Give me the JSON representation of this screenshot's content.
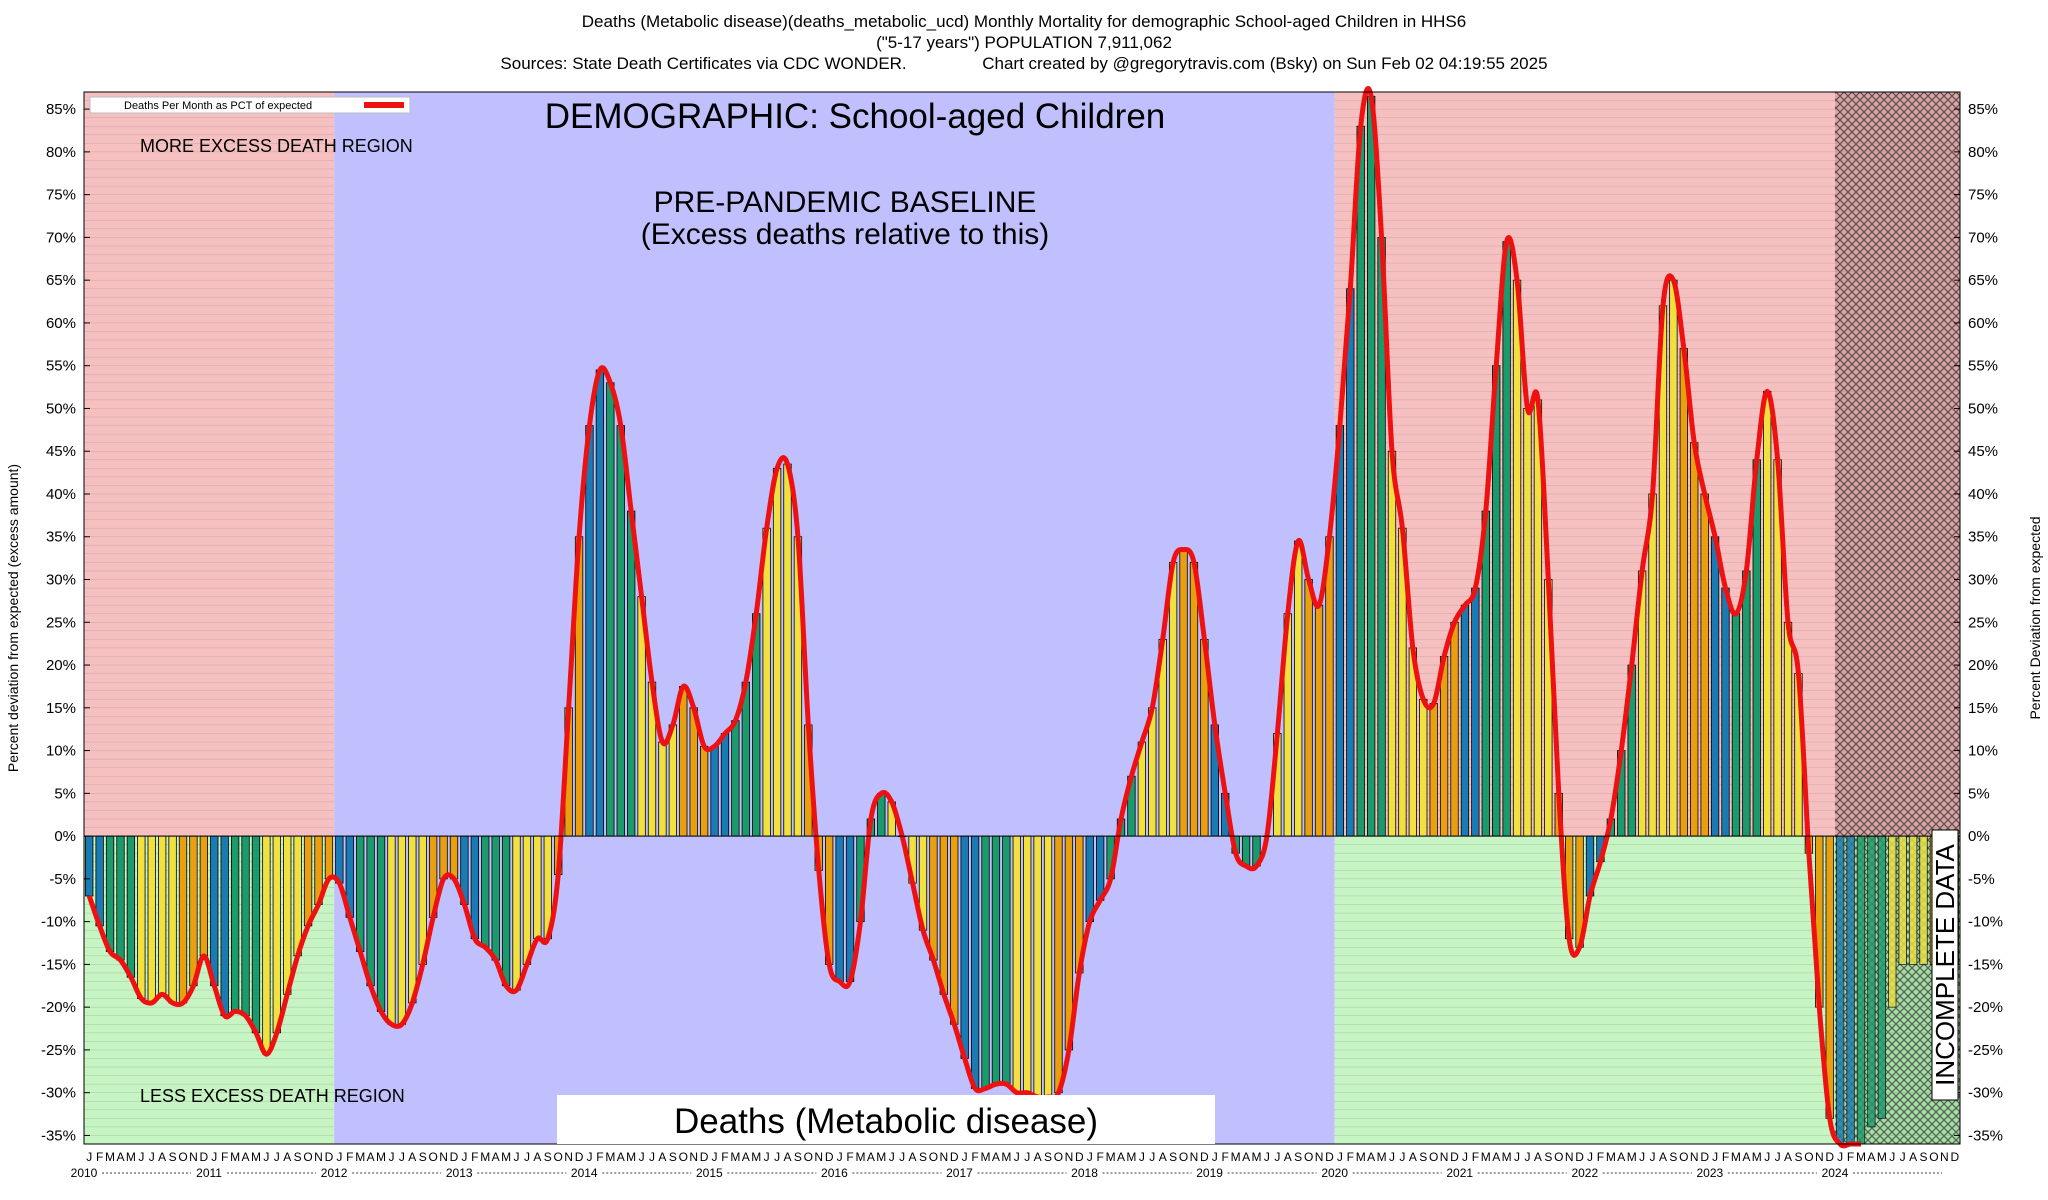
{
  "header": {
    "line1": "Deaths (Metabolic disease)(deaths_metabolic_ucd) Monthly Mortality for demographic School-aged Children in HHS6",
    "line2": "(\"5-17 years\") POPULATION 7,911,062",
    "line3": "Sources: State Death Certificates via CDC WONDER.                Chart created by @gregorytravis.com (Bsky) on Sun Feb 02 04:19:55 2025"
  },
  "chart_data": {
    "type": "bar",
    "title": "DEMOGRAPHIC: School-aged Children",
    "bottom_label": "Deaths (Metabolic disease)",
    "baseline_label_1": "PRE-PANDEMIC BASELINE",
    "baseline_label_2": "(Excess deaths relative to this)",
    "more_region_label": "MORE EXCESS DEATH REGION",
    "less_region_label": "LESS EXCESS DEATH REGION",
    "incomplete_label": "INCOMPLETE DATA",
    "legend_label": "Deaths Per Month as PCT of expected",
    "legend_position": "top-left",
    "ylabel_left": "Percent deviation from expected (excess amount)",
    "ylabel_right": "Percent Deviation from expected",
    "ylim": [
      -36,
      87
    ],
    "yticks": [
      -35,
      -30,
      -25,
      -20,
      -15,
      -10,
      -5,
      0,
      5,
      10,
      15,
      20,
      25,
      30,
      35,
      40,
      45,
      50,
      55,
      60,
      65,
      70,
      75,
      80,
      85
    ],
    "start_year": 2010,
    "years": [
      "2010",
      "2011",
      "2012",
      "2013",
      "2014",
      "2015",
      "2016",
      "2017",
      "2018",
      "2019",
      "2020",
      "2021",
      "2022",
      "2023",
      "2024"
    ],
    "month_letters": [
      "J",
      "F",
      "M",
      "A",
      "M",
      "J",
      "J",
      "A",
      "S",
      "O",
      "N",
      "D"
    ],
    "grid": true,
    "values": [
      -7,
      -10.5,
      -13.5,
      -14.5,
      -16.5,
      -19,
      -19.5,
      -18.5,
      -19.5,
      -19.5,
      -17.5,
      -14,
      -17.5,
      -21,
      -20.5,
      -21,
      -23,
      -25.5,
      -23,
      -18.5,
      -14,
      -10.5,
      -8,
      -5,
      -5.5,
      -9.5,
      -13.5,
      -17.5,
      -20.5,
      -22,
      -22,
      -19.5,
      -15,
      -9.5,
      -5,
      -5,
      -8,
      -12,
      -13,
      -14.5,
      -17.5,
      -18,
      -15,
      -12,
      -12,
      -4.5,
      15,
      35,
      48,
      54.5,
      53,
      48,
      38,
      28,
      18,
      11,
      13,
      17.5,
      15,
      10.5,
      10.5,
      12,
      13.5,
      18,
      26,
      36,
      43,
      43.5,
      35,
      13,
      -4,
      -15,
      -17,
      -17,
      -10,
      2,
      5,
      4,
      0,
      -5.5,
      -11,
      -14.5,
      -18.5,
      -22,
      -26,
      -29.5,
      -29.5,
      -29,
      -29,
      -30,
      -30,
      -30.5,
      -30.5,
      -30,
      -25,
      -16,
      -10,
      -7.5,
      -5,
      2,
      7,
      11,
      15,
      23,
      32,
      33.5,
      32,
      23,
      13,
      5,
      -2,
      -3.5,
      -3.5,
      0,
      12,
      26,
      34.5,
      30,
      27,
      35,
      48,
      64,
      83,
      86.5,
      70,
      45,
      36,
      22,
      16,
      15.5,
      21,
      25,
      27,
      29,
      38,
      55,
      69.5,
      65,
      50,
      51,
      30,
      5,
      -12,
      -13,
      -7,
      -3,
      2,
      10,
      20,
      31,
      40,
      62,
      65,
      57,
      46,
      40,
      35,
      29,
      26,
      31,
      44,
      52,
      44,
      25,
      19,
      -2,
      -20,
      -33,
      -36,
      -36,
      -36,
      -34,
      -33,
      -20,
      -15,
      -15,
      -15,
      -15,
      -15,
      -15
    ],
    "complete_months": 168
  }
}
